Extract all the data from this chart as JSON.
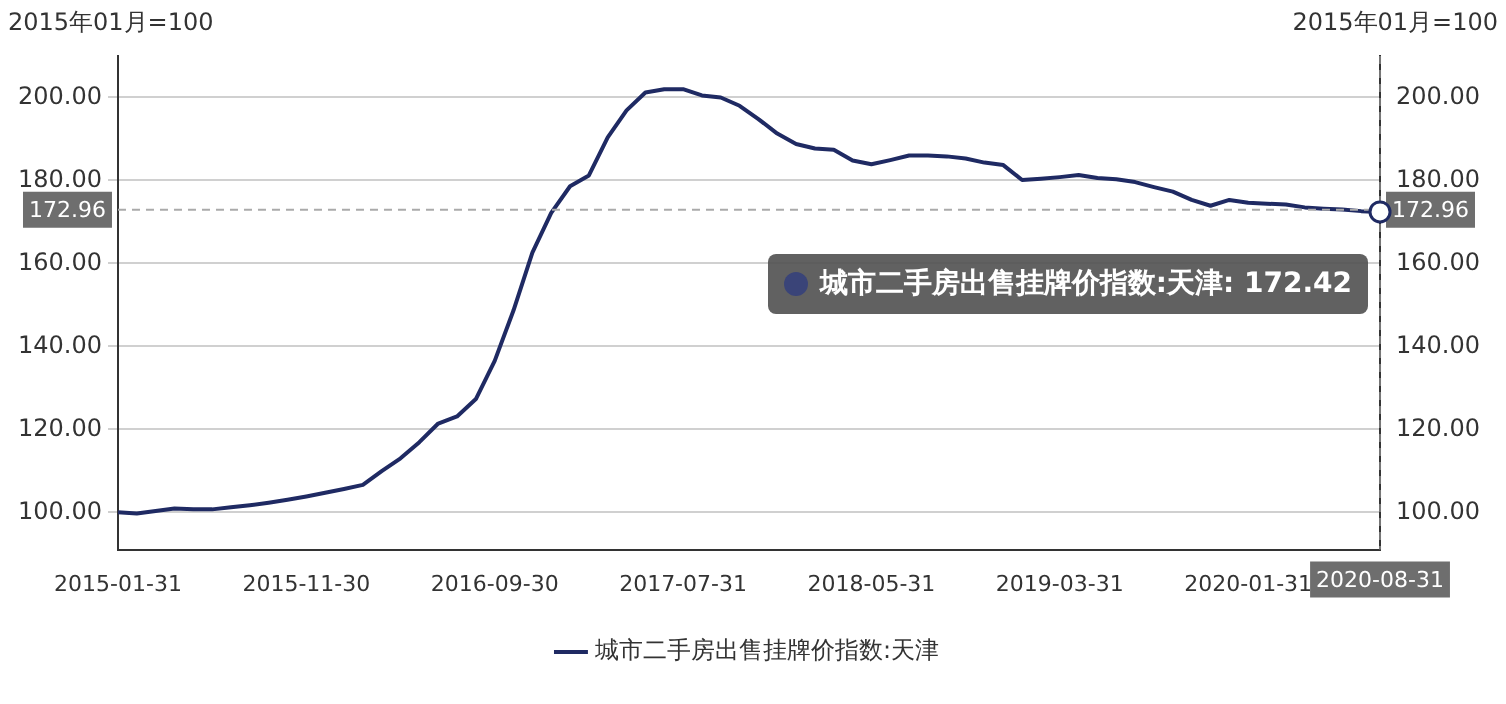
{
  "chart_data": {
    "type": "line",
    "ylabel": "2015年01月=100",
    "y2label": "2015年01月=100",
    "categories": [
      "2015-01-31",
      null,
      null,
      null,
      null,
      null,
      null,
      null,
      null,
      null,
      "2015-11-30",
      null,
      null,
      null,
      null,
      null,
      null,
      null,
      null,
      null,
      "2016-09-30",
      null,
      null,
      null,
      null,
      null,
      null,
      null,
      null,
      null,
      "2017-07-31",
      null,
      null,
      null,
      null,
      null,
      null,
      null,
      null,
      null,
      "2018-05-31",
      null,
      null,
      null,
      null,
      null,
      null,
      null,
      null,
      null,
      "2019-03-31",
      null,
      null,
      null,
      null,
      null,
      null,
      null,
      null,
      null,
      "2020-01-31",
      null,
      null,
      null,
      null,
      null,
      null,
      "2020-08-31"
    ],
    "series": [
      {
        "name": "城市二手房出售挂牌价指数:天津",
        "color": "#1f2a63",
        "values": [
          100,
          99.7,
          100.3,
          100.9,
          100.7,
          100.7,
          101.2,
          101.7,
          102.3,
          103,
          103.8,
          104.7,
          105.6,
          106.6,
          109.9,
          113,
          116.9,
          121.4,
          123.1,
          127.3,
          136.5,
          148.7,
          162.6,
          172.2,
          178.6,
          181.2,
          190.4,
          196.9,
          201.2,
          202,
          202,
          200.5,
          200,
          198,
          194.8,
          191.3,
          188.8,
          187.7,
          187.4,
          184.8,
          183.9,
          184.9,
          186,
          186,
          185.8,
          185.3,
          184.3,
          183.7,
          180.1,
          180.4,
          180.8,
          181.3,
          180.6,
          180.3,
          179.6,
          178.4,
          177.3,
          175.3,
          173.9,
          175.3,
          174.6,
          174.4,
          174.2,
          173.5,
          173.2,
          173,
          172.6,
          172.42
        ]
      }
    ],
    "ylim": [
      91,
      210
    ],
    "yticks": [
      {
        "value": 100,
        "label": "100.00"
      },
      {
        "value": 120,
        "label": "120.00"
      },
      {
        "value": 140,
        "label": "140.00"
      },
      {
        "value": 160,
        "label": "160.00"
      },
      {
        "value": 180,
        "label": "180.00"
      },
      {
        "value": 200,
        "label": "200.00"
      }
    ],
    "y2lim": [
      91,
      210
    ],
    "y2ticks": [
      {
        "value": 100,
        "label": "100.00"
      },
      {
        "value": 120,
        "label": "120.00"
      },
      {
        "value": 140,
        "label": "140.00"
      },
      {
        "value": 160,
        "label": "160.00"
      },
      {
        "value": 180,
        "label": "180.00"
      },
      {
        "value": 200,
        "label": "200.00"
      }
    ],
    "ref_lines": [
      {
        "axis": "y",
        "value": 172.96,
        "label": "172.96",
        "color": "#aaaaaa",
        "line_style": "dashed"
      },
      {
        "axis": "x",
        "value": "2020-08-31",
        "color": "#777777",
        "line_style": "dashed"
      }
    ],
    "annotations": [
      {
        "text": "城市二手房出售挂牌价指数:天津: 172.42",
        "x": "2020-08-31",
        "y": 172.42
      }
    ],
    "grid": "y",
    "legend": "bottom",
    "marker": "none",
    "line_style": "solid"
  }
}
